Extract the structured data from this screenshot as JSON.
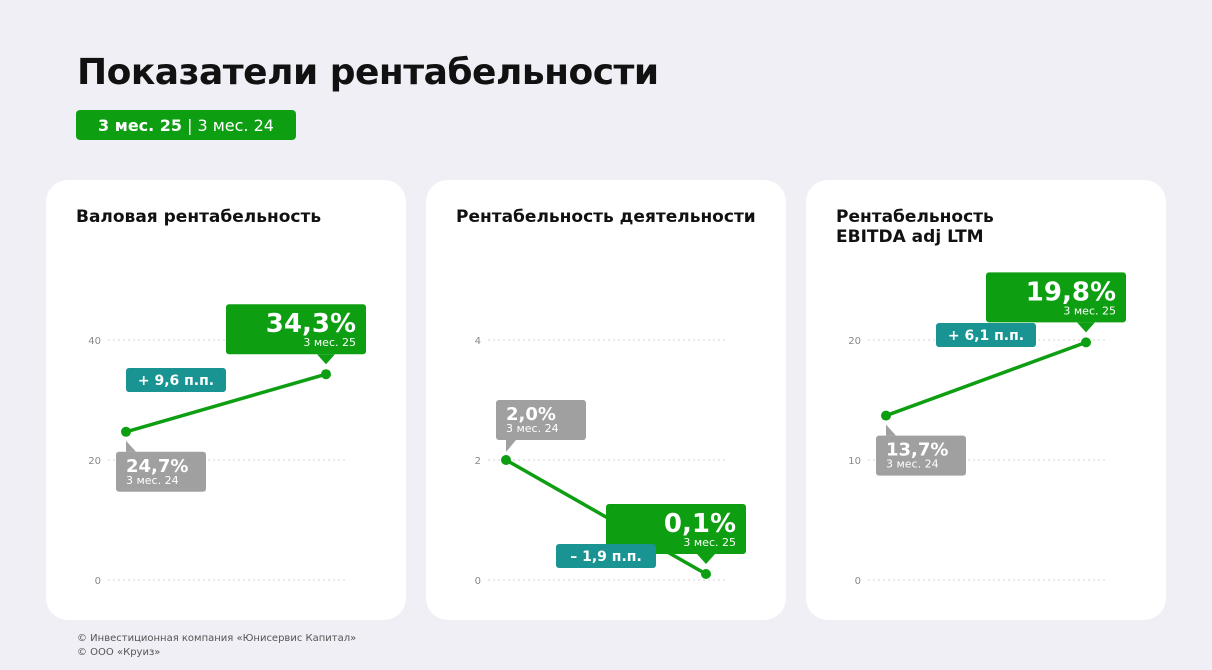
{
  "title": "Показатели рентабельности",
  "period": {
    "current": "3 мес. 25",
    "separator": "|",
    "previous": "3 мес. 24"
  },
  "colors": {
    "green": "#0e9e12",
    "teal": "#1a9393",
    "gray": "#a0a0a0",
    "background": "#efeff5"
  },
  "chart_data": [
    {
      "type": "line",
      "title": "Валовая рентабельность",
      "yticks": [
        "0",
        "20",
        "40"
      ],
      "ylim": [
        0,
        40
      ],
      "grid": true,
      "points": [
        {
          "period": "3 мес. 24",
          "value": 24.7,
          "label": "24,7%"
        },
        {
          "period": "3 мес. 25",
          "value": 34.3,
          "label": "34,3%"
        }
      ],
      "change": "+ 9,6 п.п."
    },
    {
      "type": "line",
      "title": "Рентабельность деятельности",
      "yticks": [
        "0",
        "2",
        "4"
      ],
      "ylim": [
        0,
        4
      ],
      "grid": true,
      "points": [
        {
          "period": "3 мес. 24",
          "value": 2.0,
          "label": "2,0%"
        },
        {
          "period": "3 мес. 25",
          "value": 0.1,
          "label": "0,1%"
        }
      ],
      "change": "– 1,9 п.п."
    },
    {
      "type": "line",
      "title": "Рентабельность EBITDA adj LTM",
      "yticks": [
        "0",
        "10",
        "20"
      ],
      "ylim": [
        0,
        20
      ],
      "grid": true,
      "points": [
        {
          "period": "3 мес. 24",
          "value": 13.7,
          "label": "13,7%"
        },
        {
          "period": "3 мес. 25",
          "value": 19.8,
          "label": "19,8%"
        }
      ],
      "change": "+ 6,1 п.п."
    }
  ],
  "footer": {
    "line1": "© Инвестиционная компания «Юнисервис Капитал»",
    "line2": "© ООО «Круиз»"
  }
}
